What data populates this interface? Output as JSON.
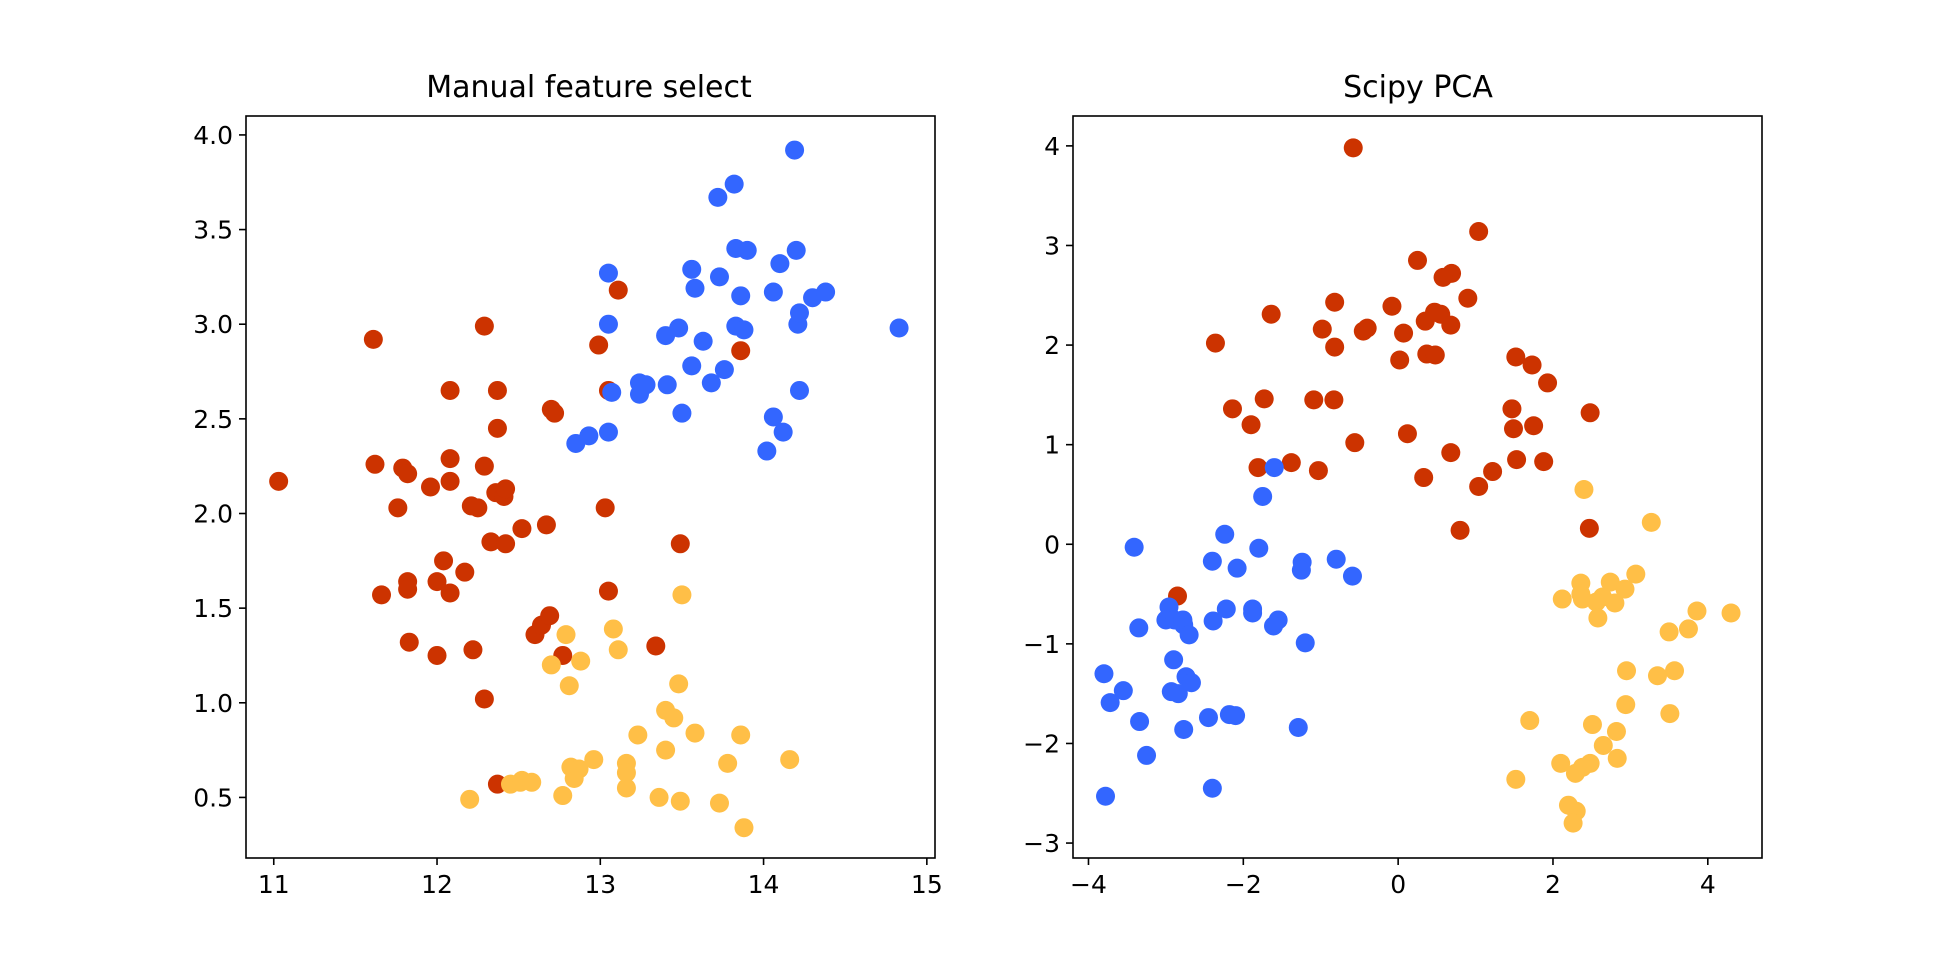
{
  "colors": {
    "class_1": "#cc3300",
    "class_2": "#3366ff",
    "class_3": "#ffbf47"
  },
  "chart_data": [
    {
      "type": "scatter",
      "title": "Manual feature select",
      "xlabel": "",
      "ylabel": "",
      "xlim": [
        10.83,
        15.05
      ],
      "ylim": [
        0.18,
        4.1
      ],
      "xticks": [
        11,
        12,
        13,
        14,
        15
      ],
      "yticks": [
        0.5,
        1.0,
        1.5,
        2.0,
        2.5,
        3.0,
        3.5,
        4.0
      ],
      "xtick_labels": [
        "11",
        "12",
        "13",
        "14",
        "15"
      ],
      "ytick_labels": [
        "0.5",
        "1.0",
        "1.5",
        "2.0",
        "2.5",
        "3.0",
        "3.5",
        "4.0"
      ],
      "grid": false,
      "legend": "none",
      "series": [
        {
          "color": "#cc3300",
          "points": [
            [
              11.03,
              2.17
            ],
            [
              11.61,
              2.92
            ],
            [
              11.62,
              2.26
            ],
            [
              11.66,
              1.57
            ],
            [
              11.76,
              2.03
            ],
            [
              11.79,
              2.24
            ],
            [
              11.82,
              2.21
            ],
            [
              11.82,
              1.64
            ],
            [
              11.82,
              1.6
            ],
            [
              11.83,
              1.32
            ],
            [
              11.96,
              2.14
            ],
            [
              12.0,
              1.64
            ],
            [
              12.0,
              1.25
            ],
            [
              12.04,
              1.75
            ],
            [
              12.08,
              2.65
            ],
            [
              12.08,
              2.29
            ],
            [
              12.08,
              2.17
            ],
            [
              12.08,
              1.58
            ],
            [
              12.17,
              1.69
            ],
            [
              12.21,
              2.04
            ],
            [
              12.22,
              1.28
            ],
            [
              12.25,
              2.03
            ],
            [
              12.29,
              2.99
            ],
            [
              12.29,
              2.25
            ],
            [
              12.29,
              1.02
            ],
            [
              12.33,
              1.85
            ],
            [
              12.36,
              2.11
            ],
            [
              12.37,
              2.65
            ],
            [
              12.37,
              2.45
            ],
            [
              12.37,
              0.57
            ],
            [
              12.41,
              2.09
            ],
            [
              12.42,
              2.13
            ],
            [
              12.42,
              1.84
            ],
            [
              12.52,
              1.92
            ],
            [
              12.6,
              1.36
            ],
            [
              12.64,
              1.41
            ],
            [
              12.67,
              1.94
            ],
            [
              12.69,
              1.46
            ],
            [
              12.7,
              2.55
            ],
            [
              12.72,
              2.53
            ],
            [
              12.77,
              1.25
            ],
            [
              12.99,
              2.89
            ],
            [
              13.03,
              2.03
            ],
            [
              13.05,
              2.65
            ],
            [
              13.05,
              1.59
            ],
            [
              13.11,
              3.18
            ],
            [
              13.34,
              1.3
            ],
            [
              13.49,
              1.84
            ],
            [
              13.86,
              2.86
            ]
          ]
        },
        {
          "color": "#3366ff",
          "points": [
            [
              12.85,
              2.37
            ],
            [
              12.93,
              2.41
            ],
            [
              13.05,
              3.27
            ],
            [
              13.05,
              3.0
            ],
            [
              13.05,
              2.43
            ],
            [
              13.07,
              2.64
            ],
            [
              13.24,
              2.69
            ],
            [
              13.24,
              2.63
            ],
            [
              13.28,
              2.68
            ],
            [
              13.4,
              2.94
            ],
            [
              13.41,
              2.68
            ],
            [
              13.48,
              2.98
            ],
            [
              13.5,
              2.53
            ],
            [
              13.56,
              3.29
            ],
            [
              13.56,
              2.78
            ],
            [
              13.58,
              3.19
            ],
            [
              13.63,
              2.91
            ],
            [
              13.68,
              2.69
            ],
            [
              13.72,
              3.67
            ],
            [
              13.73,
              3.25
            ],
            [
              13.76,
              2.76
            ],
            [
              13.82,
              3.74
            ],
            [
              13.83,
              3.4
            ],
            [
              13.83,
              2.99
            ],
            [
              13.86,
              3.15
            ],
            [
              13.88,
              2.97
            ],
            [
              13.9,
              3.39
            ],
            [
              14.02,
              2.33
            ],
            [
              14.06,
              3.17
            ],
            [
              14.06,
              2.51
            ],
            [
              14.1,
              3.32
            ],
            [
              14.12,
              2.43
            ],
            [
              14.19,
              3.92
            ],
            [
              14.2,
              3.39
            ],
            [
              14.21,
              3.0
            ],
            [
              14.22,
              3.06
            ],
            [
              14.22,
              2.65
            ],
            [
              14.3,
              3.14
            ],
            [
              14.38,
              3.17
            ],
            [
              14.83,
              2.98
            ]
          ]
        },
        {
          "color": "#ffbf47",
          "points": [
            [
              12.2,
              0.49
            ],
            [
              12.45,
              0.57
            ],
            [
              12.51,
              0.58
            ],
            [
              12.52,
              0.59
            ],
            [
              12.58,
              0.58
            ],
            [
              12.77,
              0.51
            ],
            [
              12.79,
              1.36
            ],
            [
              12.81,
              1.09
            ],
            [
              12.82,
              0.66
            ],
            [
              12.84,
              0.6
            ],
            [
              12.87,
              0.65
            ],
            [
              12.88,
              1.22
            ],
            [
              12.7,
              1.2
            ],
            [
              12.96,
              0.7
            ],
            [
              13.08,
              1.39
            ],
            [
              13.11,
              1.28
            ],
            [
              13.16,
              0.68
            ],
            [
              13.16,
              0.63
            ],
            [
              13.16,
              0.55
            ],
            [
              13.23,
              0.83
            ],
            [
              13.36,
              0.5
            ],
            [
              13.4,
              0.96
            ],
            [
              13.4,
              0.75
            ],
            [
              13.45,
              0.92
            ],
            [
              13.48,
              1.1
            ],
            [
              13.49,
              0.48
            ],
            [
              13.5,
              1.57
            ],
            [
              13.58,
              0.84
            ],
            [
              13.73,
              0.47
            ],
            [
              13.78,
              0.68
            ],
            [
              13.86,
              0.83
            ],
            [
              13.88,
              0.34
            ],
            [
              14.16,
              0.7
            ]
          ]
        }
      ]
    },
    {
      "type": "scatter",
      "title": "Scipy PCA",
      "xlabel": "",
      "ylabel": "",
      "xlim": [
        -4.2,
        4.7
      ],
      "ylim": [
        -3.15,
        4.3
      ],
      "xticks": [
        -4,
        -2,
        0,
        2,
        4
      ],
      "yticks": [
        -3,
        -2,
        -1,
        0,
        1,
        2,
        3,
        4
      ],
      "xtick_labels": [
        "−4",
        "−2",
        "0",
        "2",
        "4"
      ],
      "ytick_labels": [
        "−3",
        "−2",
        "−1",
        "0",
        "1",
        "2",
        "3",
        "4"
      ],
      "grid": false,
      "legend": "none",
      "series": [
        {
          "color": "#cc3300",
          "points": [
            [
              -0.58,
              3.98
            ],
            [
              1.04,
              3.14
            ],
            [
              0.25,
              2.85
            ],
            [
              0.69,
              2.72
            ],
            [
              0.58,
              2.68
            ],
            [
              0.9,
              2.47
            ],
            [
              -0.82,
              2.43
            ],
            [
              -0.08,
              2.39
            ],
            [
              0.47,
              2.33
            ],
            [
              0.55,
              2.31
            ],
            [
              -1.64,
              2.31
            ],
            [
              0.35,
              2.24
            ],
            [
              0.68,
              2.2
            ],
            [
              -0.4,
              2.17
            ],
            [
              -0.98,
              2.16
            ],
            [
              0.07,
              2.12
            ],
            [
              -0.45,
              2.14
            ],
            [
              -2.36,
              2.02
            ],
            [
              -0.82,
              1.98
            ],
            [
              0.37,
              1.91
            ],
            [
              0.48,
              1.9
            ],
            [
              0.02,
              1.85
            ],
            [
              1.52,
              1.88
            ],
            [
              1.73,
              1.8
            ],
            [
              1.93,
              1.62
            ],
            [
              -1.73,
              1.46
            ],
            [
              -1.09,
              1.45
            ],
            [
              -0.83,
              1.45
            ],
            [
              -2.14,
              1.36
            ],
            [
              1.47,
              1.36
            ],
            [
              2.48,
              1.32
            ],
            [
              -1.9,
              1.2
            ],
            [
              1.49,
              1.16
            ],
            [
              1.75,
              1.19
            ],
            [
              0.12,
              1.11
            ],
            [
              -0.56,
              1.02
            ],
            [
              0.68,
              0.92
            ],
            [
              1.53,
              0.85
            ],
            [
              1.88,
              0.83
            ],
            [
              -1.38,
              0.82
            ],
            [
              -1.81,
              0.77
            ],
            [
              -1.03,
              0.74
            ],
            [
              1.22,
              0.73
            ],
            [
              0.33,
              0.67
            ],
            [
              1.04,
              0.58
            ],
            [
              2.47,
              0.16
            ],
            [
              0.8,
              0.14
            ],
            [
              -2.85,
              -0.52
            ]
          ]
        },
        {
          "color": "#3366ff",
          "points": [
            [
              -1.6,
              0.77
            ],
            [
              -1.75,
              0.48
            ],
            [
              -2.24,
              0.1
            ],
            [
              -3.41,
              -0.03
            ],
            [
              -1.8,
              -0.04
            ],
            [
              -2.4,
              -0.17
            ],
            [
              -1.24,
              -0.18
            ],
            [
              -0.8,
              -0.15
            ],
            [
              -2.08,
              -0.24
            ],
            [
              -1.25,
              -0.26
            ],
            [
              -0.59,
              -0.32
            ],
            [
              -2.22,
              -0.65
            ],
            [
              -1.88,
              -0.65
            ],
            [
              -2.96,
              -0.63
            ],
            [
              -1.88,
              -0.69
            ],
            [
              -3.0,
              -0.76
            ],
            [
              -2.89,
              -0.76
            ],
            [
              -1.55,
              -0.76
            ],
            [
              -2.78,
              -0.76
            ],
            [
              -2.39,
              -0.77
            ],
            [
              -2.77,
              -0.81
            ],
            [
              -1.61,
              -0.82
            ],
            [
              -3.35,
              -0.84
            ],
            [
              -2.7,
              -0.91
            ],
            [
              -1.2,
              -0.99
            ],
            [
              -2.9,
              -1.16
            ],
            [
              -2.74,
              -1.33
            ],
            [
              -3.8,
              -1.3
            ],
            [
              -2.67,
              -1.39
            ],
            [
              -2.93,
              -1.48
            ],
            [
              -2.84,
              -1.5
            ],
            [
              -3.55,
              -1.47
            ],
            [
              -3.72,
              -1.59
            ],
            [
              -2.18,
              -1.71
            ],
            [
              -2.1,
              -1.72
            ],
            [
              -2.45,
              -1.74
            ],
            [
              -3.34,
              -1.78
            ],
            [
              -2.77,
              -1.86
            ],
            [
              -1.29,
              -1.84
            ],
            [
              -3.25,
              -2.12
            ],
            [
              -2.4,
              -2.45
            ],
            [
              -3.78,
              -2.53
            ]
          ]
        },
        {
          "color": "#ffbf47",
          "points": [
            [
              2.4,
              0.55
            ],
            [
              3.27,
              0.22
            ],
            [
              3.07,
              -0.3
            ],
            [
              2.36,
              -0.39
            ],
            [
              2.74,
              -0.38
            ],
            [
              2.93,
              -0.45
            ],
            [
              2.36,
              -0.5
            ],
            [
              2.64,
              -0.53
            ],
            [
              2.12,
              -0.55
            ],
            [
              2.38,
              -0.55
            ],
            [
              2.56,
              -0.58
            ],
            [
              2.8,
              -0.59
            ],
            [
              3.86,
              -0.67
            ],
            [
              4.3,
              -0.69
            ],
            [
              2.58,
              -0.74
            ],
            [
              3.75,
              -0.85
            ],
            [
              3.5,
              -0.88
            ],
            [
              2.95,
              -1.27
            ],
            [
              3.57,
              -1.27
            ],
            [
              3.35,
              -1.32
            ],
            [
              2.94,
              -1.61
            ],
            [
              3.51,
              -1.7
            ],
            [
              1.7,
              -1.77
            ],
            [
              2.51,
              -1.81
            ],
            [
              2.82,
              -1.88
            ],
            [
              2.65,
              -2.02
            ],
            [
              2.83,
              -2.15
            ],
            [
              2.48,
              -2.2
            ],
            [
              2.38,
              -2.24
            ],
            [
              2.1,
              -2.2
            ],
            [
              2.29,
              -2.3
            ],
            [
              1.52,
              -2.36
            ],
            [
              2.2,
              -2.62
            ],
            [
              2.3,
              -2.68
            ],
            [
              2.26,
              -2.8
            ]
          ]
        }
      ]
    }
  ]
}
